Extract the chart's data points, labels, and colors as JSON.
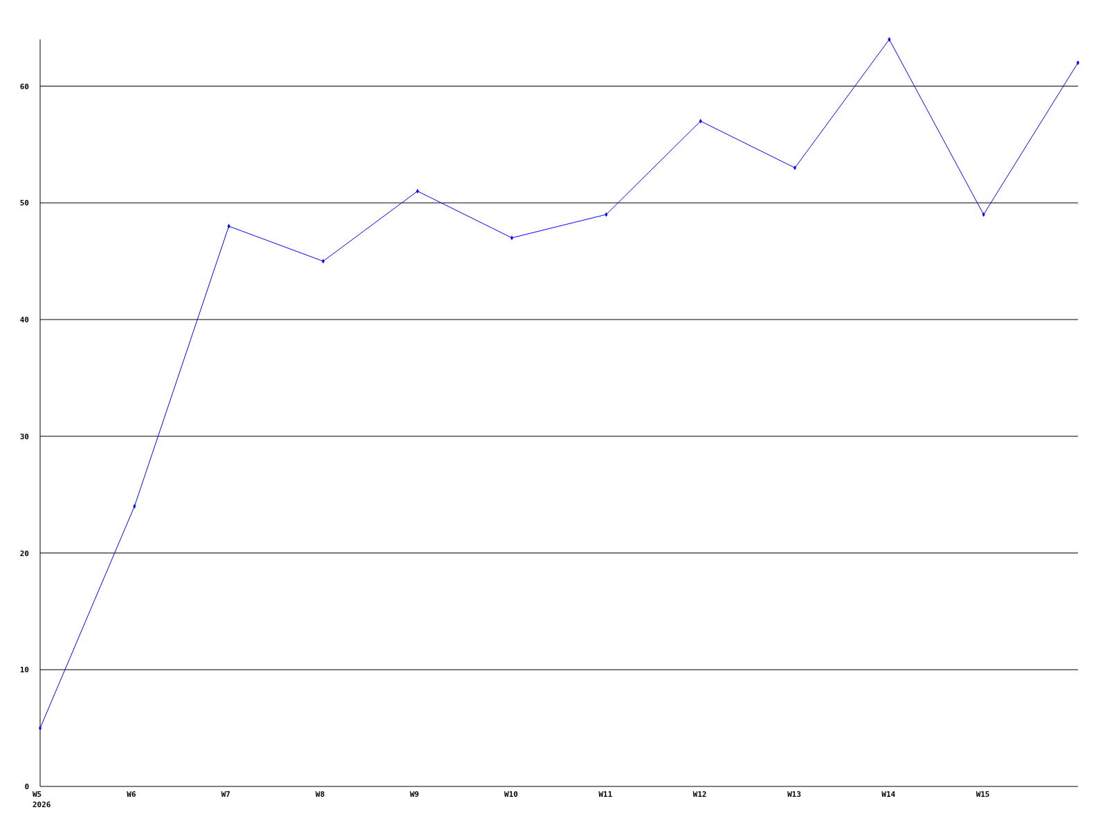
{
  "chart_data": {
    "type": "line",
    "categories": [
      "W5",
      "W6",
      "W7",
      "W8",
      "W9",
      "W10",
      "W11",
      "W12",
      "W13",
      "W14",
      "W15",
      null
    ],
    "series": [
      {
        "color": "#0000ff",
        "values": [
          5,
          24,
          48,
          45,
          51,
          47,
          49,
          57,
          53,
          64,
          49,
          62
        ]
      }
    ],
    "ylim": [
      0,
      64
    ],
    "yticks": [
      0,
      10,
      20,
      30,
      40,
      50,
      60
    ],
    "grid": "y",
    "marker": "diamond",
    "annotations": [
      "2026"
    ]
  }
}
